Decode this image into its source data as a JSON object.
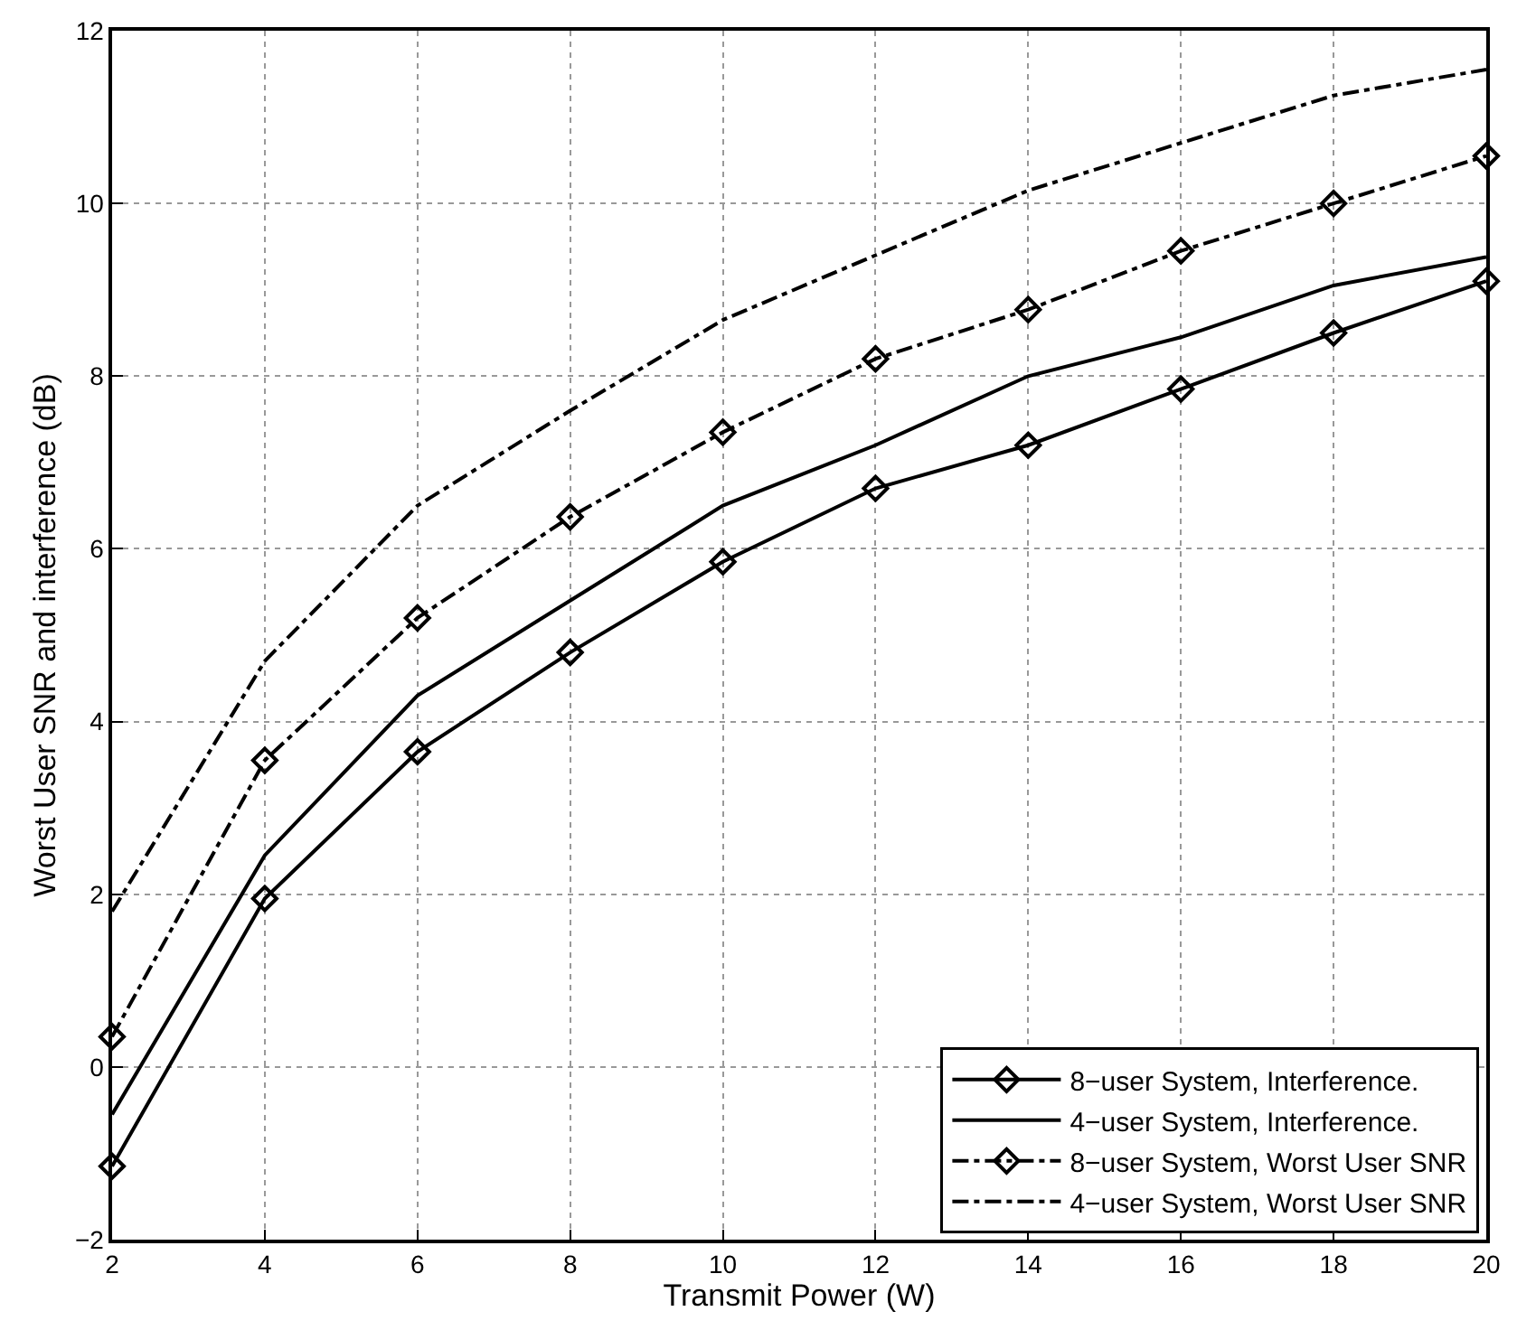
{
  "chart_data": {
    "type": "line",
    "xlabel": "Transmit Power (W)",
    "ylabel": "Worst User SNR and interference (dB)",
    "x": [
      2,
      4,
      6,
      8,
      10,
      12,
      14,
      16,
      18,
      20
    ],
    "series": [
      {
        "name": "8−user System, Interference.",
        "color": "#000000",
        "marker": "diamond",
        "line_style": "solid",
        "values": [
          -1.15,
          1.95,
          3.65,
          4.8,
          5.85,
          6.7,
          7.2,
          7.85,
          8.5,
          9.1
        ]
      },
      {
        "name": "4−user System, Interference.",
        "color": "#000000",
        "marker": "none",
        "line_style": "solid",
        "values": [
          -0.55,
          2.45,
          4.3,
          5.4,
          6.5,
          7.2,
          8.0,
          8.45,
          9.05,
          9.38
        ]
      },
      {
        "name": "8−user System, Worst User SNR",
        "color": "#000000",
        "marker": "diamond",
        "line_style": "dashed",
        "values": [
          0.35,
          3.55,
          5.2,
          6.37,
          7.35,
          8.2,
          8.77,
          9.45,
          10.0,
          10.55
        ]
      },
      {
        "name": "4−user System, Worst User SNR",
        "color": "#000000",
        "marker": "none",
        "line_style": "dashed",
        "values": [
          1.8,
          4.7,
          6.5,
          7.6,
          8.65,
          9.4,
          10.15,
          10.7,
          11.25,
          11.55
        ]
      }
    ],
    "xlim": [
      2,
      20
    ],
    "xticks": [
      2,
      4,
      6,
      8,
      10,
      12,
      14,
      16,
      18,
      20
    ],
    "ylim": [
      -2,
      12
    ],
    "yticks": [
      -2,
      0,
      2,
      4,
      6,
      8,
      10,
      12
    ],
    "grid": true,
    "legend": "bottom right"
  }
}
